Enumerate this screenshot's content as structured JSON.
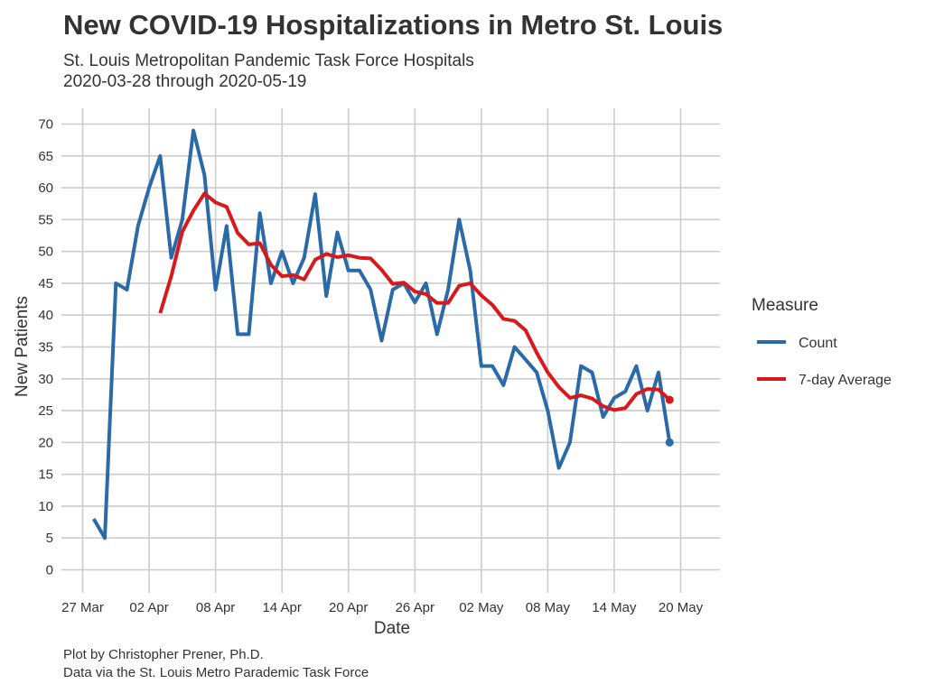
{
  "chart_data": {
    "type": "line",
    "title": "New COVID-19 Hospitalizations in Metro St. Louis",
    "subtitle": [
      "St. Louis Metropolitan Pandemic Task Force Hospitals",
      "2020-03-28 through 2020-05-19"
    ],
    "xlabel": "Date",
    "ylabel": "New Patients",
    "caption": [
      "Plot by Christopher Prener, Ph.D.",
      "Data via the St. Louis Metro Parademic Task Force"
    ],
    "ylim": [
      0,
      70
    ],
    "y_ticks": [
      0,
      5,
      10,
      15,
      20,
      25,
      30,
      35,
      40,
      45,
      50,
      55,
      60,
      65,
      70
    ],
    "x_range": [
      "2020-03-27",
      "2020-05-20"
    ],
    "x_ticks": [
      {
        "date": "2020-03-27",
        "label": "27 Mar"
      },
      {
        "date": "2020-04-02",
        "label": "02 Apr"
      },
      {
        "date": "2020-04-08",
        "label": "08 Apr"
      },
      {
        "date": "2020-04-14",
        "label": "14 Apr"
      },
      {
        "date": "2020-04-20",
        "label": "20 Apr"
      },
      {
        "date": "2020-04-26",
        "label": "26 Apr"
      },
      {
        "date": "2020-05-02",
        "label": "02 May"
      },
      {
        "date": "2020-05-08",
        "label": "08 May"
      },
      {
        "date": "2020-05-14",
        "label": "14 May"
      },
      {
        "date": "2020-05-20",
        "label": "20 May"
      }
    ],
    "grid": true,
    "legend": {
      "title": "Measure",
      "position": "right"
    },
    "series": [
      {
        "name": "Count",
        "color": "#2b6aa8",
        "start_date": "2020-03-28",
        "values": [
          8,
          5,
          45,
          44,
          54,
          60,
          65,
          49,
          55,
          69,
          62,
          44,
          54,
          37,
          37,
          56,
          45,
          50,
          45,
          49,
          59,
          43,
          53,
          47,
          47,
          44,
          36,
          44,
          45,
          42,
          45,
          37,
          44,
          55,
          47,
          32,
          32,
          29,
          35,
          33,
          31,
          25,
          16,
          20,
          32,
          31,
          24,
          27,
          28,
          32,
          25,
          31,
          20
        ],
        "end_point": true
      },
      {
        "name": "7-day Average",
        "color": "#d7191c",
        "start_date": "2020-04-03",
        "values": [
          40.3,
          46.1,
          53.1,
          56.4,
          59.1,
          57.7,
          57.0,
          52.9,
          51.1,
          51.3,
          47.9,
          46.1,
          46.3,
          45.6,
          48.7,
          49.6,
          49.1,
          49.4,
          49.0,
          48.9,
          47.1,
          44.9,
          45.1,
          43.7,
          43.3,
          41.9,
          41.9,
          44.6,
          45.0,
          43.1,
          41.6,
          39.4,
          39.1,
          37.6,
          34.1,
          31.0,
          28.7,
          27.0,
          27.4,
          26.9,
          25.7,
          25.1,
          25.4,
          27.6,
          28.4,
          28.3,
          26.7
        ],
        "end_point": true
      }
    ]
  }
}
